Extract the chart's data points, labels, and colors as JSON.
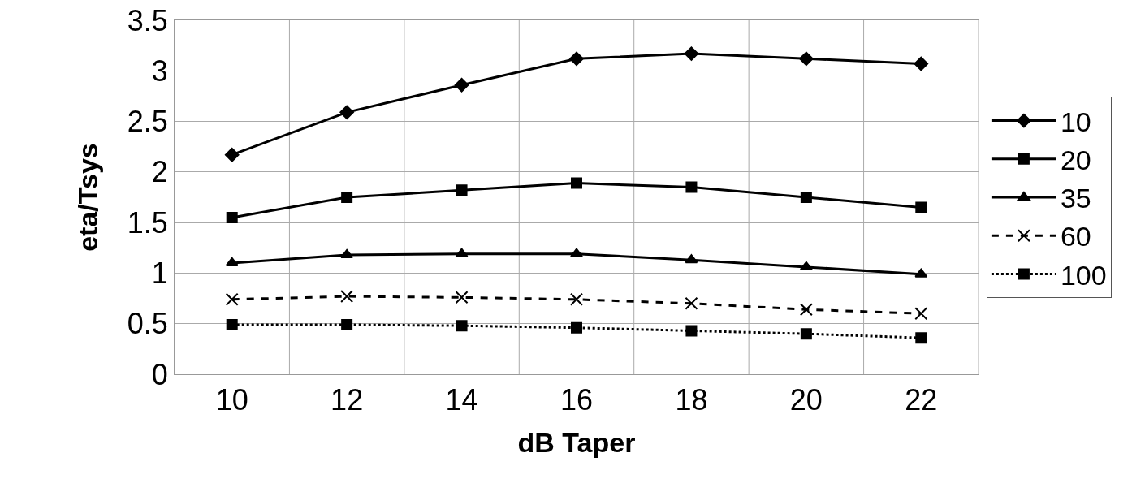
{
  "chart_data": {
    "type": "line",
    "xlabel": "dB Taper",
    "ylabel": "eta/Tsys",
    "categories": [
      "10",
      "12",
      "14",
      "16",
      "18",
      "20",
      "22"
    ],
    "series": [
      {
        "name": "10",
        "color": "#000000",
        "marker": "diamond",
        "line_style": "solid",
        "values": [
          2.17,
          2.59,
          2.86,
          3.12,
          3.17,
          3.12,
          3.07
        ]
      },
      {
        "name": "20",
        "color": "#000000",
        "marker": "square",
        "line_style": "solid",
        "values": [
          1.55,
          1.75,
          1.82,
          1.89,
          1.85,
          1.75,
          1.65
        ]
      },
      {
        "name": "35",
        "color": "#000000",
        "marker": "triangle",
        "line_style": "solid",
        "values": [
          1.1,
          1.18,
          1.19,
          1.19,
          1.13,
          1.06,
          0.99
        ]
      },
      {
        "name": "60",
        "color": "#000000",
        "marker": "cross",
        "line_style": "dashed",
        "values": [
          0.74,
          0.77,
          0.76,
          0.74,
          0.7,
          0.64,
          0.6
        ]
      },
      {
        "name": "100",
        "color": "#000000",
        "marker": "square",
        "line_style": "dotted",
        "values": [
          0.49,
          0.49,
          0.48,
          0.46,
          0.43,
          0.4,
          0.36
        ]
      }
    ],
    "ylim": [
      0,
      3.5
    ],
    "yticks": [
      0,
      0.5,
      1,
      1.5,
      2,
      2.5,
      3,
      3.5
    ],
    "grid": true,
    "legend": "right"
  }
}
